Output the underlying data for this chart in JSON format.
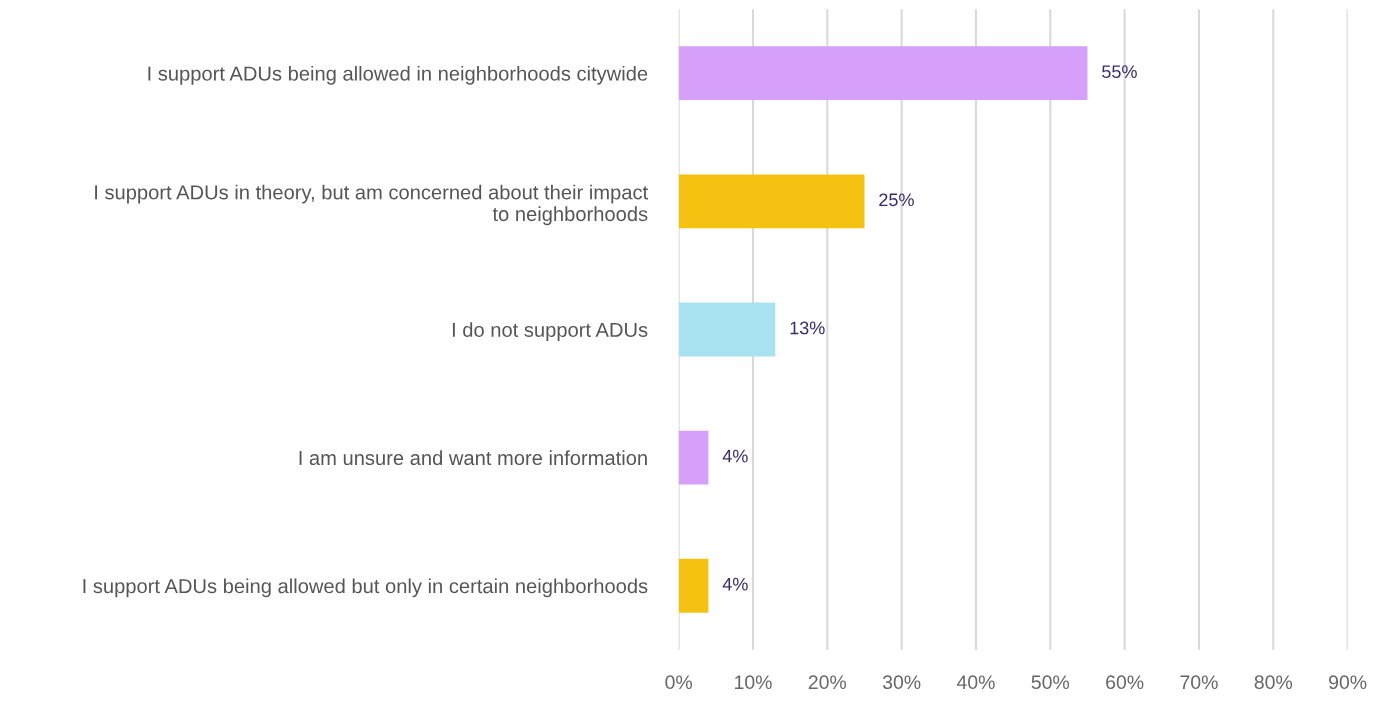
{
  "chart_data": {
    "type": "bar",
    "orientation": "horizontal",
    "categories": [
      "I support ADUs being allowed in neighborhoods citywide",
      "I support ADUs in theory, but am concerned about their impact\nto neighborhoods",
      "I do not support ADUs",
      "I am unsure and want more information",
      "I support ADUs being allowed but only in certain neighborhoods"
    ],
    "values": [
      55,
      25,
      13,
      4,
      4
    ],
    "colors": [
      "#d59ffa",
      "#f5c211",
      "#a8e1f0",
      "#d59ffa",
      "#f5c211"
    ],
    "value_labels": [
      "55%",
      "25%",
      "13%",
      "4%",
      "4%"
    ],
    "xlim": [
      0,
      90
    ],
    "xticks": [
      {
        "value": 0,
        "label": "0%"
      },
      {
        "value": 10,
        "label": "10%"
      },
      {
        "value": 20,
        "label": "20%"
      },
      {
        "value": 30,
        "label": "30%"
      },
      {
        "value": 40,
        "label": "40%"
      },
      {
        "value": 50,
        "label": "50%"
      },
      {
        "value": 60,
        "label": "60%"
      },
      {
        "value": 70,
        "label": "70%"
      },
      {
        "value": 80,
        "label": "80%"
      },
      {
        "value": 90,
        "label": "90%"
      }
    ],
    "grid": "x"
  }
}
